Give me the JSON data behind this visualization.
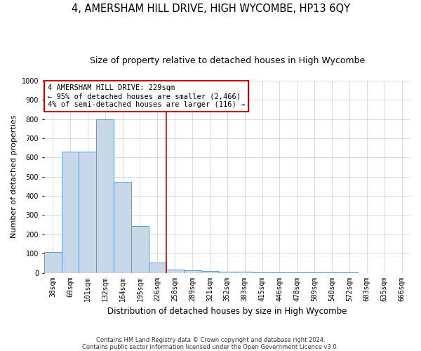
{
  "title1": "4, AMERSHAM HILL DRIVE, HIGH WYCOMBE, HP13 6QY",
  "title2": "Size of property relative to detached houses in High Wycombe",
  "xlabel": "Distribution of detached houses by size in High Wycombe",
  "ylabel": "Number of detached properties",
  "footnote": "Contains HM Land Registry data © Crown copyright and database right 2024.\nContains public sector information licensed under the Open Government Licence v3.0.",
  "bin_labels": [
    "38sqm",
    "69sqm",
    "101sqm",
    "132sqm",
    "164sqm",
    "195sqm",
    "226sqm",
    "258sqm",
    "289sqm",
    "321sqm",
    "352sqm",
    "383sqm",
    "415sqm",
    "446sqm",
    "478sqm",
    "509sqm",
    "540sqm",
    "572sqm",
    "603sqm",
    "635sqm",
    "666sqm"
  ],
  "bar_values": [
    107,
    630,
    630,
    800,
    475,
    245,
    55,
    18,
    12,
    8,
    5,
    4,
    3,
    2,
    2,
    1,
    1,
    1,
    0,
    0,
    0
  ],
  "bar_color": "#C8D8E8",
  "bar_edge_color": "#5B9BD5",
  "vline_color": "#CC0000",
  "annotation_text": "4 AMERSHAM HILL DRIVE: 229sqm\n← 95% of detached houses are smaller (2,466)\n4% of semi-detached houses are larger (116) →",
  "annotation_box_color": "#CC0000",
  "ylim": [
    0,
    1000
  ],
  "yticks": [
    0,
    100,
    200,
    300,
    400,
    500,
    600,
    700,
    800,
    900,
    1000
  ],
  "grid_color": "#CCCCCC",
  "bg_color": "#FFFFFF",
  "title1_fontsize": 10.5,
  "title2_fontsize": 9,
  "xlabel_fontsize": 8.5,
  "ylabel_fontsize": 8,
  "annotation_fontsize": 7.5,
  "tick_fontsize": 7
}
